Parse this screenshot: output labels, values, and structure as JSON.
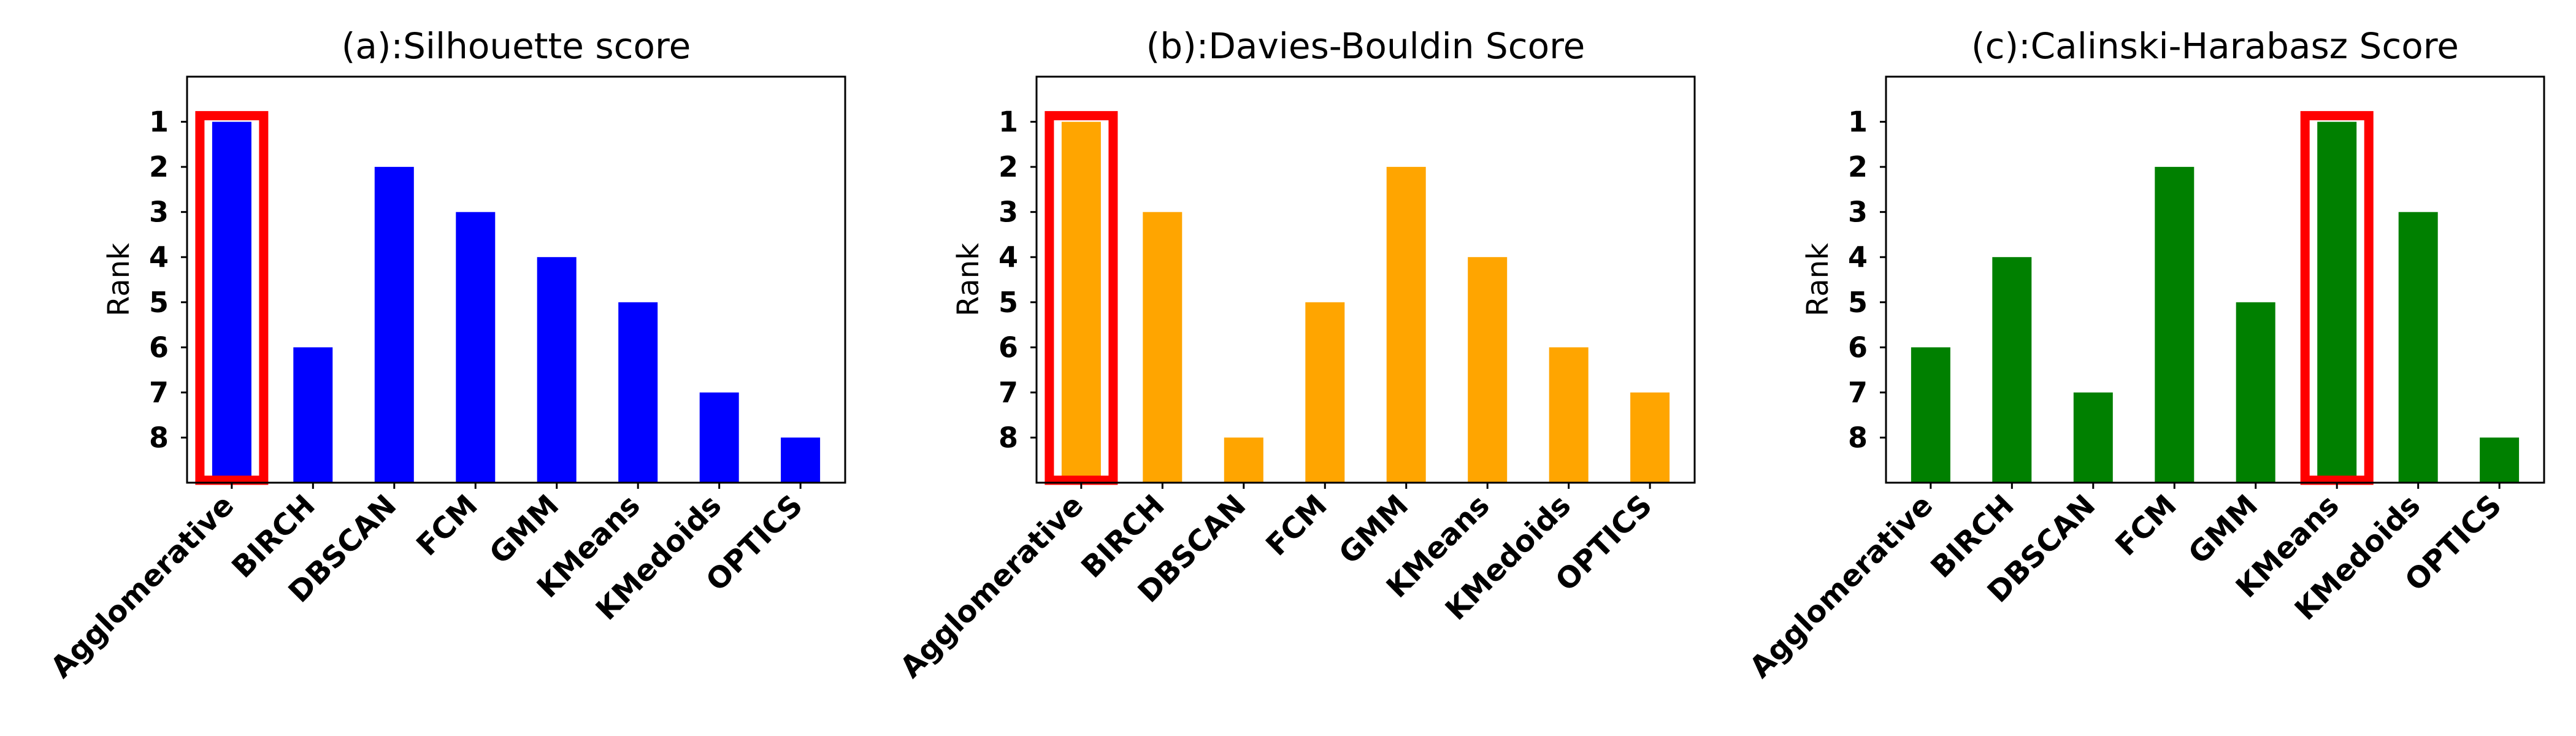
{
  "chart_data": [
    {
      "type": "bar",
      "title": "(a):Silhouette score",
      "ylabel": "Rank",
      "xlabel": "",
      "categories": [
        "Agglomerative",
        "BIRCH",
        "DBSCAN",
        "FCM",
        "GMM",
        "KMeans",
        "KMedoids",
        "OPTICS"
      ],
      "values": [
        1,
        6,
        2,
        3,
        4,
        5,
        7,
        8
      ],
      "y_ticks": [
        "1",
        "2",
        "3",
        "4",
        "5",
        "6",
        "7",
        "8"
      ],
      "y_inverted": true,
      "ylim": [
        0,
        9
      ],
      "bar_color": "#0000ff",
      "highlight": {
        "category": "Agglomerative",
        "color": "#ff0000"
      },
      "grid": false,
      "legend": "none"
    },
    {
      "type": "bar",
      "title": "(b):Davies-Bouldin Score",
      "ylabel": "Rank",
      "xlabel": "",
      "categories": [
        "Agglomerative",
        "BIRCH",
        "DBSCAN",
        "FCM",
        "GMM",
        "KMeans",
        "KMedoids",
        "OPTICS"
      ],
      "values": [
        1,
        3,
        8,
        5,
        2,
        4,
        6,
        7
      ],
      "y_ticks": [
        "1",
        "2",
        "3",
        "4",
        "5",
        "6",
        "7",
        "8"
      ],
      "y_inverted": true,
      "ylim": [
        0,
        9
      ],
      "bar_color": "#ffa500",
      "highlight": {
        "category": "Agglomerative",
        "color": "#ff0000"
      },
      "grid": false,
      "legend": "none"
    },
    {
      "type": "bar",
      "title": "(c):Calinski-Harabasz Score",
      "ylabel": "Rank",
      "xlabel": "",
      "categories": [
        "Agglomerative",
        "BIRCH",
        "DBSCAN",
        "FCM",
        "GMM",
        "KMeans",
        "KMedoids",
        "OPTICS"
      ],
      "values": [
        6,
        4,
        7,
        2,
        5,
        1,
        3,
        8
      ],
      "y_ticks": [
        "1",
        "2",
        "3",
        "4",
        "5",
        "6",
        "7",
        "8"
      ],
      "y_inverted": true,
      "ylim": [
        0,
        9
      ],
      "bar_color": "#008000",
      "highlight": {
        "category": "KMeans",
        "color": "#ff0000"
      },
      "grid": false,
      "legend": "none"
    }
  ]
}
